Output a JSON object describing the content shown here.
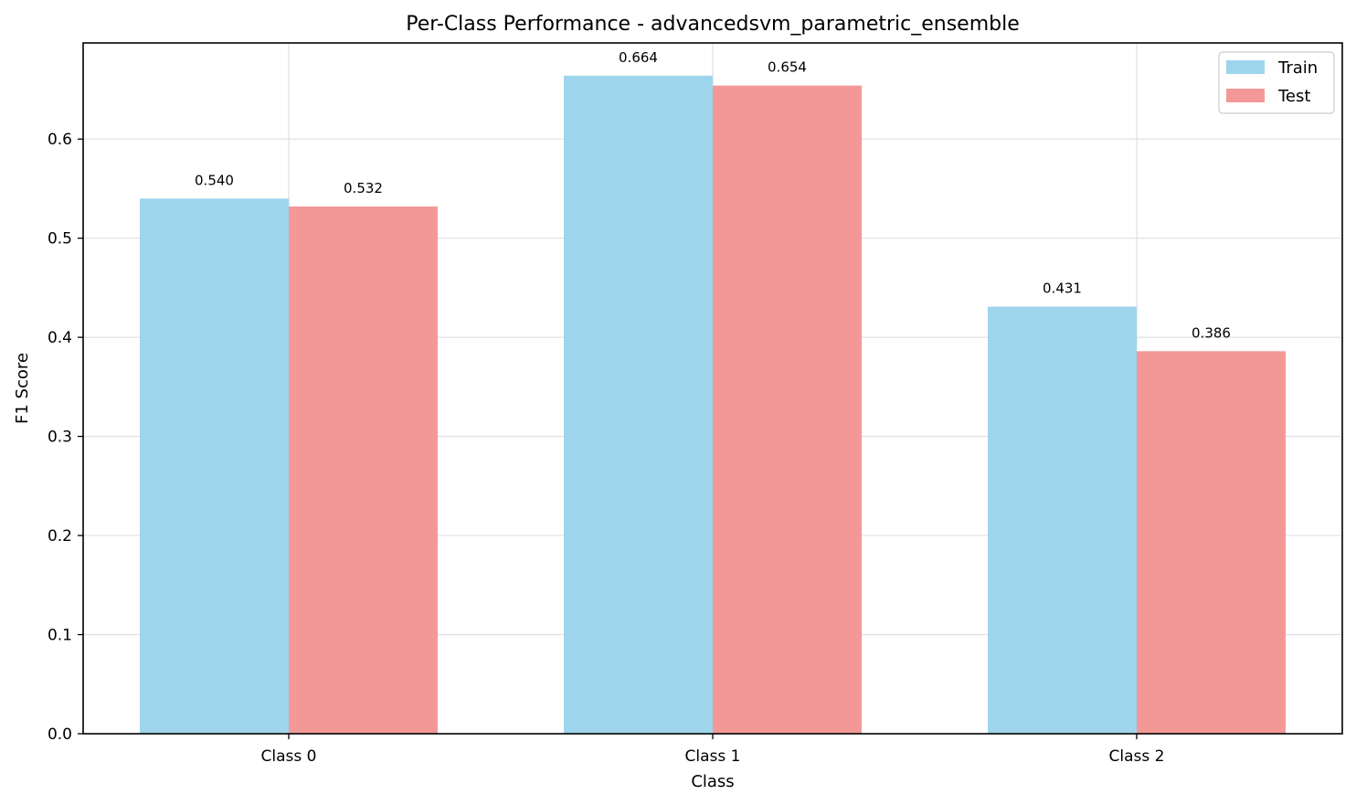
{
  "chart_data": {
    "type": "bar",
    "title": "Per-Class Performance - advancedsvm_parametric_ensemble",
    "xlabel": "Class",
    "ylabel": "F1 Score",
    "categories": [
      "Class 0",
      "Class 1",
      "Class 2"
    ],
    "series": [
      {
        "name": "Train",
        "values": [
          0.54,
          0.664,
          0.431
        ],
        "color": "#9fd5ec"
      },
      {
        "name": "Test",
        "values": [
          0.532,
          0.654,
          0.386
        ],
        "color": "#f29998"
      }
    ],
    "data_labels": [
      [
        "0.540",
        "0.664",
        "0.431"
      ],
      [
        "0.532",
        "0.654",
        "0.386"
      ]
    ],
    "ylim": [
      0,
      0.697
    ],
    "yticks": [
      "0.0",
      "0.1",
      "0.2",
      "0.3",
      "0.4",
      "0.5",
      "0.6"
    ],
    "grid": true,
    "legend_position": "top-right"
  }
}
